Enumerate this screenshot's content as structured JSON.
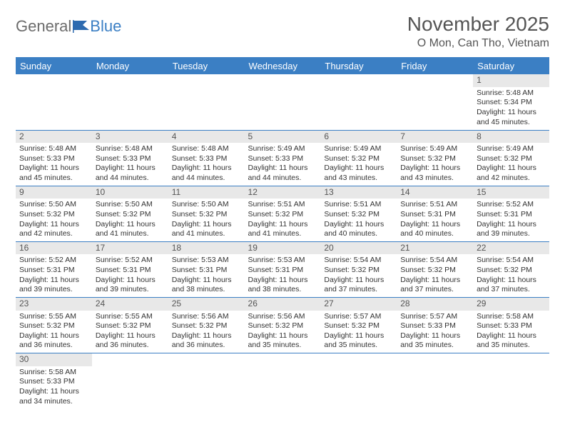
{
  "logo": {
    "part1": "General",
    "part2": "Blue"
  },
  "header": {
    "month": "November 2025",
    "location": "O Mon, Can Tho, Vietnam"
  },
  "colors": {
    "header_bg": "#3b7fc4",
    "header_text": "#ffffff",
    "daynum_bg": "#e8e8e8",
    "cell_border": "#3b7fc4",
    "body_text": "#333333",
    "title_text": "#555555"
  },
  "columns": [
    "Sunday",
    "Monday",
    "Tuesday",
    "Wednesday",
    "Thursday",
    "Friday",
    "Saturday"
  ],
  "weeks": [
    [
      null,
      null,
      null,
      null,
      null,
      null,
      {
        "n": "1",
        "sr": "5:48 AM",
        "ss": "5:34 PM",
        "dl": "11 hours and 45 minutes."
      }
    ],
    [
      {
        "n": "2",
        "sr": "5:48 AM",
        "ss": "5:33 PM",
        "dl": "11 hours and 45 minutes."
      },
      {
        "n": "3",
        "sr": "5:48 AM",
        "ss": "5:33 PM",
        "dl": "11 hours and 44 minutes."
      },
      {
        "n": "4",
        "sr": "5:48 AM",
        "ss": "5:33 PM",
        "dl": "11 hours and 44 minutes."
      },
      {
        "n": "5",
        "sr": "5:49 AM",
        "ss": "5:33 PM",
        "dl": "11 hours and 44 minutes."
      },
      {
        "n": "6",
        "sr": "5:49 AM",
        "ss": "5:32 PM",
        "dl": "11 hours and 43 minutes."
      },
      {
        "n": "7",
        "sr": "5:49 AM",
        "ss": "5:32 PM",
        "dl": "11 hours and 43 minutes."
      },
      {
        "n": "8",
        "sr": "5:49 AM",
        "ss": "5:32 PM",
        "dl": "11 hours and 42 minutes."
      }
    ],
    [
      {
        "n": "9",
        "sr": "5:50 AM",
        "ss": "5:32 PM",
        "dl": "11 hours and 42 minutes."
      },
      {
        "n": "10",
        "sr": "5:50 AM",
        "ss": "5:32 PM",
        "dl": "11 hours and 41 minutes."
      },
      {
        "n": "11",
        "sr": "5:50 AM",
        "ss": "5:32 PM",
        "dl": "11 hours and 41 minutes."
      },
      {
        "n": "12",
        "sr": "5:51 AM",
        "ss": "5:32 PM",
        "dl": "11 hours and 41 minutes."
      },
      {
        "n": "13",
        "sr": "5:51 AM",
        "ss": "5:32 PM",
        "dl": "11 hours and 40 minutes."
      },
      {
        "n": "14",
        "sr": "5:51 AM",
        "ss": "5:31 PM",
        "dl": "11 hours and 40 minutes."
      },
      {
        "n": "15",
        "sr": "5:52 AM",
        "ss": "5:31 PM",
        "dl": "11 hours and 39 minutes."
      }
    ],
    [
      {
        "n": "16",
        "sr": "5:52 AM",
        "ss": "5:31 PM",
        "dl": "11 hours and 39 minutes."
      },
      {
        "n": "17",
        "sr": "5:52 AM",
        "ss": "5:31 PM",
        "dl": "11 hours and 39 minutes."
      },
      {
        "n": "18",
        "sr": "5:53 AM",
        "ss": "5:31 PM",
        "dl": "11 hours and 38 minutes."
      },
      {
        "n": "19",
        "sr": "5:53 AM",
        "ss": "5:31 PM",
        "dl": "11 hours and 38 minutes."
      },
      {
        "n": "20",
        "sr": "5:54 AM",
        "ss": "5:32 PM",
        "dl": "11 hours and 37 minutes."
      },
      {
        "n": "21",
        "sr": "5:54 AM",
        "ss": "5:32 PM",
        "dl": "11 hours and 37 minutes."
      },
      {
        "n": "22",
        "sr": "5:54 AM",
        "ss": "5:32 PM",
        "dl": "11 hours and 37 minutes."
      }
    ],
    [
      {
        "n": "23",
        "sr": "5:55 AM",
        "ss": "5:32 PM",
        "dl": "11 hours and 36 minutes."
      },
      {
        "n": "24",
        "sr": "5:55 AM",
        "ss": "5:32 PM",
        "dl": "11 hours and 36 minutes."
      },
      {
        "n": "25",
        "sr": "5:56 AM",
        "ss": "5:32 PM",
        "dl": "11 hours and 36 minutes."
      },
      {
        "n": "26",
        "sr": "5:56 AM",
        "ss": "5:32 PM",
        "dl": "11 hours and 35 minutes."
      },
      {
        "n": "27",
        "sr": "5:57 AM",
        "ss": "5:32 PM",
        "dl": "11 hours and 35 minutes."
      },
      {
        "n": "28",
        "sr": "5:57 AM",
        "ss": "5:33 PM",
        "dl": "11 hours and 35 minutes."
      },
      {
        "n": "29",
        "sr": "5:58 AM",
        "ss": "5:33 PM",
        "dl": "11 hours and 35 minutes."
      }
    ],
    [
      {
        "n": "30",
        "sr": "5:58 AM",
        "ss": "5:33 PM",
        "dl": "11 hours and 34 minutes."
      },
      null,
      null,
      null,
      null,
      null,
      null
    ]
  ],
  "labels": {
    "sunrise": "Sunrise: ",
    "sunset": "Sunset: ",
    "daylight": "Daylight: "
  }
}
